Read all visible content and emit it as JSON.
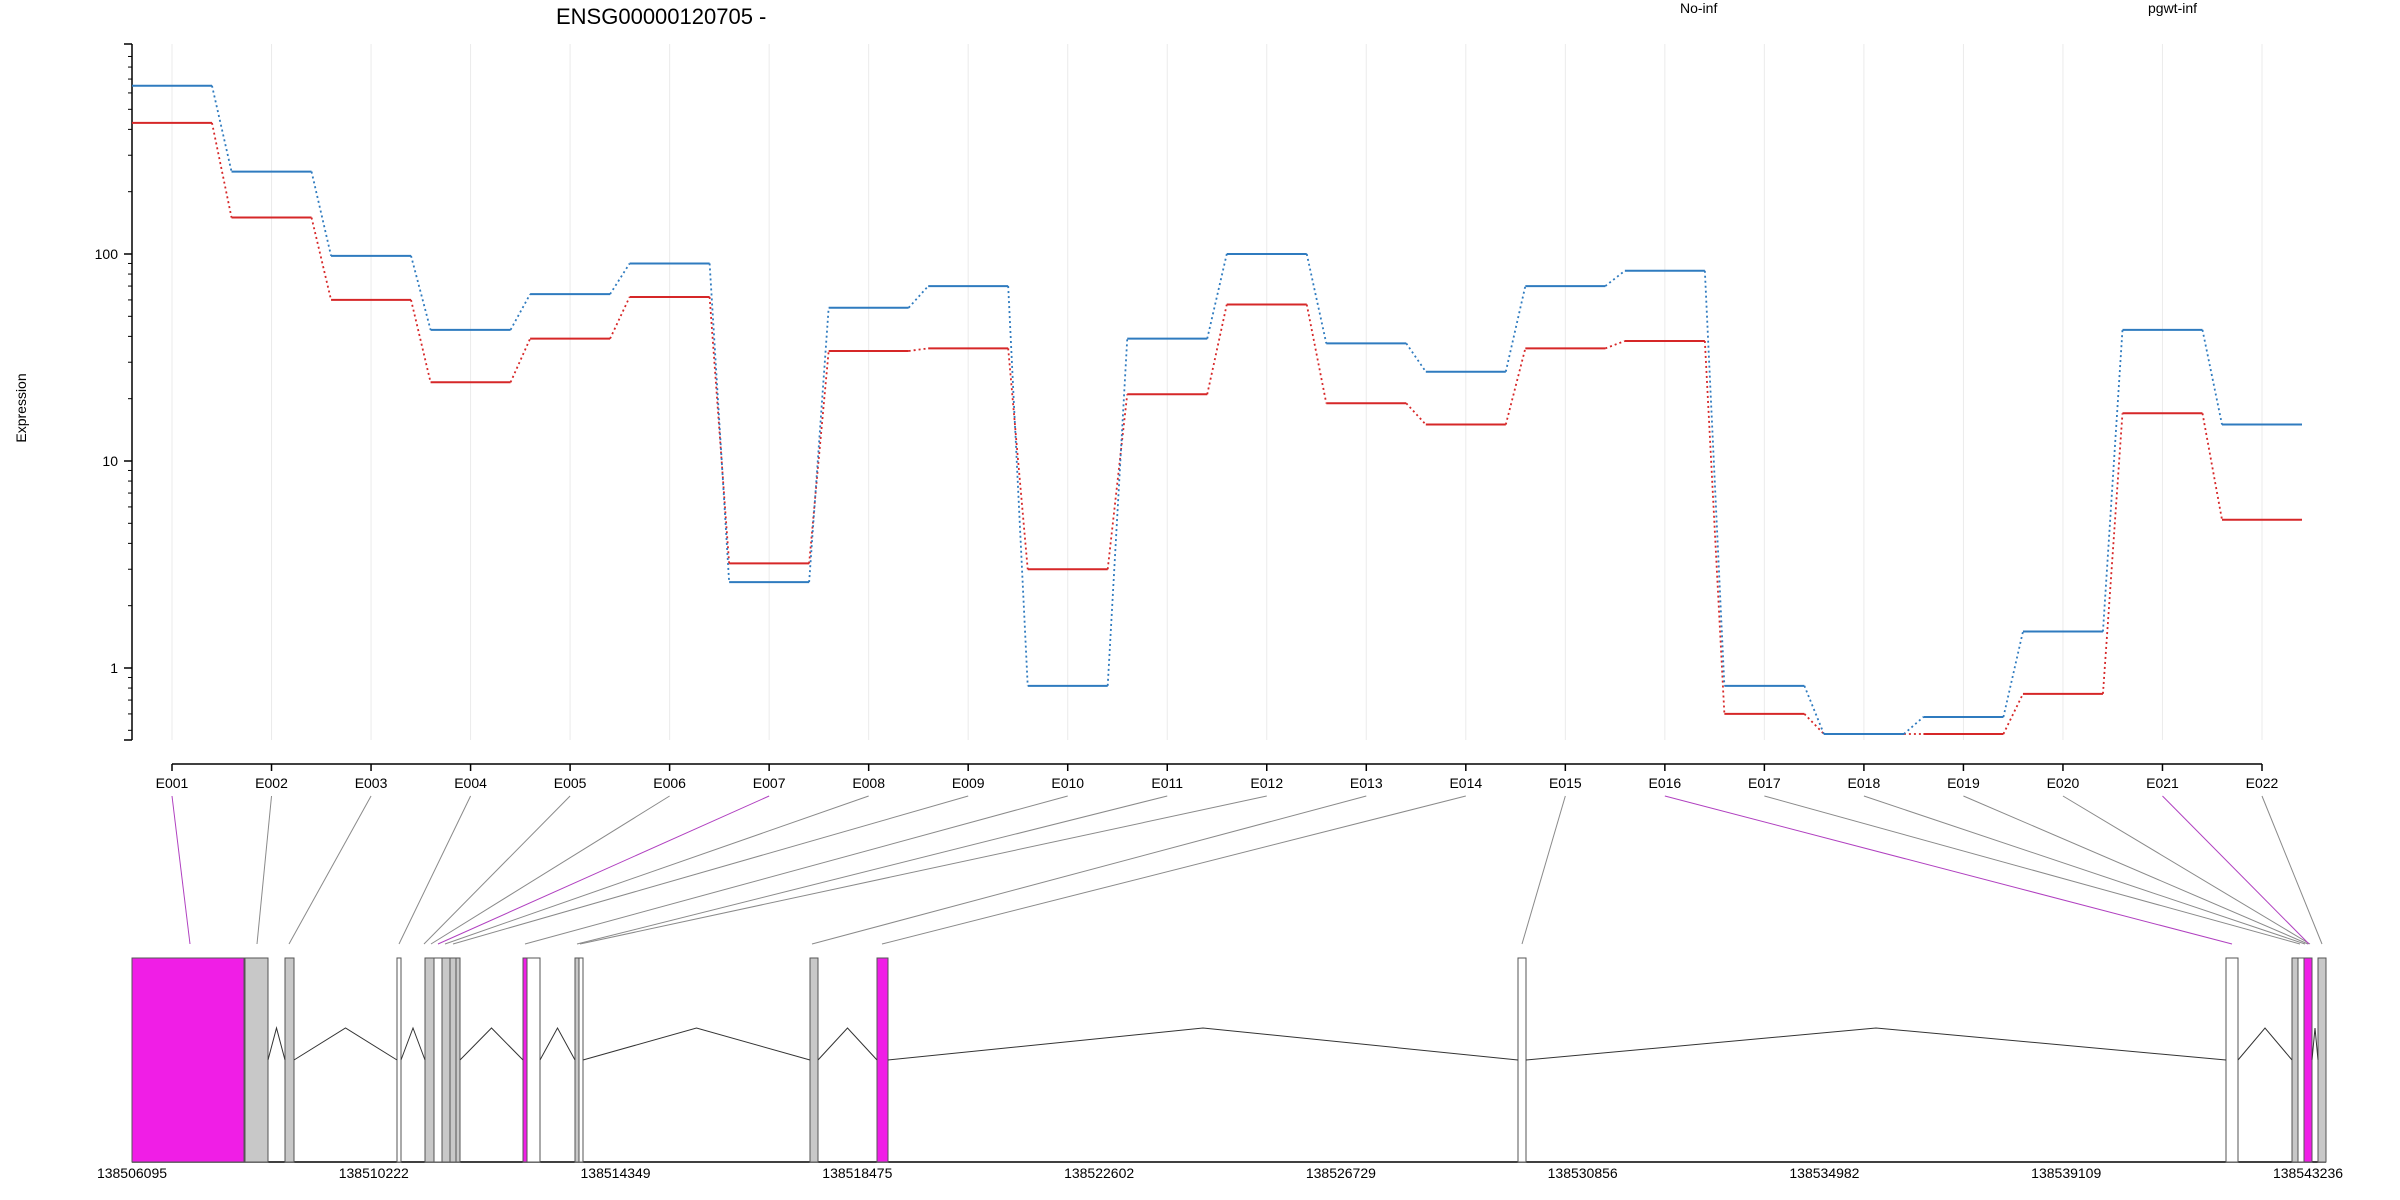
{
  "chart_data": {
    "type": "line",
    "title": "ENSG00000120705 -",
    "ylabel": "Expression",
    "xlabel": "",
    "y_scale": "log",
    "ylim": [
      0.45,
      900
    ],
    "y_ticks": [
      1,
      10,
      100
    ],
    "y_tick_labels": [
      "1",
      "10",
      "100"
    ],
    "grid": "vertical light gridlines at exon positions",
    "legend_placement": "top",
    "categories": [
      "E001",
      "E002",
      "E003",
      "E004",
      "E005",
      "E006",
      "E007",
      "E008",
      "E009",
      "E010",
      "E011",
      "E012",
      "E013",
      "E014",
      "E015",
      "E016",
      "E017",
      "E018",
      "E019",
      "E020",
      "E021",
      "E022"
    ],
    "series": [
      {
        "name": "No-inf",
        "color": "#d62728",
        "values": [
          430,
          150,
          60,
          24,
          39,
          62,
          3.2,
          34,
          35,
          3.0,
          21,
          57,
          19,
          15,
          35,
          38,
          0.6,
          0.48,
          0.48,
          0.75,
          17,
          5.2
        ]
      },
      {
        "name": "pgwt-inf",
        "color": "#2f7bbf",
        "values": [
          650,
          250,
          98,
          43,
          64,
          90,
          2.6,
          55,
          70,
          0.82,
          39,
          100,
          37,
          27,
          70,
          83,
          0.82,
          0.48,
          0.58,
          1.5,
          43,
          15
        ]
      }
    ],
    "gene_model": {
      "coordinate_ticks": [
        "138506095",
        "138510222",
        "138514349",
        "138518475",
        "138522602",
        "138526729",
        "138530856",
        "138534982",
        "138539109",
        "138543236"
      ],
      "highlight_color": "#f01ee6",
      "exon_color": "#c8c8c8",
      "exon_fill": "#ffffff",
      "highlighted_exons": [
        "E001",
        "E007",
        "E016",
        "E021"
      ]
    }
  }
}
